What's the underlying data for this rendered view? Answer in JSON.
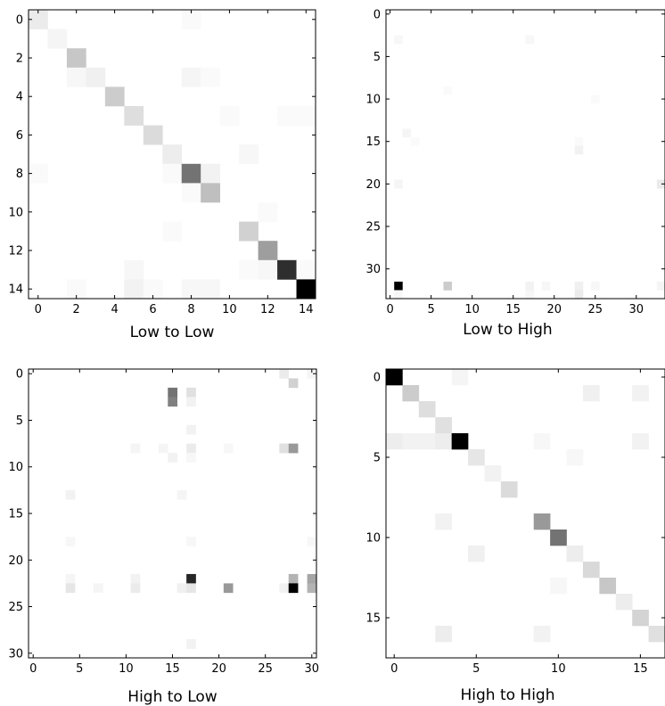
{
  "chart_data": [
    {
      "type": "heatmap",
      "title": "Low to Low",
      "n_rows": 15,
      "n_cols": 15,
      "xticks": [
        0,
        2,
        4,
        6,
        8,
        10,
        12,
        14
      ],
      "yticks": [
        0,
        2,
        4,
        6,
        8,
        10,
        12,
        14
      ],
      "colormap": "grayscale (white = low, black = high)",
      "cells": [
        {
          "r": 0,
          "c": 0,
          "v": 0.08
        },
        {
          "r": 0,
          "c": 8,
          "v": 0.02
        },
        {
          "r": 1,
          "c": 1,
          "v": 0.04
        },
        {
          "r": 2,
          "c": 2,
          "v": 0.22
        },
        {
          "r": 3,
          "c": 2,
          "v": 0.03
        },
        {
          "r": 3,
          "c": 3,
          "v": 0.06
        },
        {
          "r": 3,
          "c": 8,
          "v": 0.04
        },
        {
          "r": 3,
          "c": 9,
          "v": 0.02
        },
        {
          "r": 4,
          "c": 4,
          "v": 0.2
        },
        {
          "r": 5,
          "c": 5,
          "v": 0.13
        },
        {
          "r": 5,
          "c": 10,
          "v": 0.02
        },
        {
          "r": 5,
          "c": 13,
          "v": 0.02
        },
        {
          "r": 5,
          "c": 14,
          "v": 0.02
        },
        {
          "r": 6,
          "c": 6,
          "v": 0.14
        },
        {
          "r": 7,
          "c": 7,
          "v": 0.07
        },
        {
          "r": 7,
          "c": 11,
          "v": 0.03
        },
        {
          "r": 8,
          "c": 0,
          "v": 0.02
        },
        {
          "r": 8,
          "c": 7,
          "v": 0.02
        },
        {
          "r": 8,
          "c": 8,
          "v": 0.55
        },
        {
          "r": 8,
          "c": 9,
          "v": 0.05
        },
        {
          "r": 9,
          "c": 8,
          "v": 0.02
        },
        {
          "r": 9,
          "c": 9,
          "v": 0.25
        },
        {
          "r": 10,
          "c": 12,
          "v": 0.02
        },
        {
          "r": 11,
          "c": 7,
          "v": 0.02
        },
        {
          "r": 11,
          "c": 11,
          "v": 0.18
        },
        {
          "r": 12,
          "c": 12,
          "v": 0.38
        },
        {
          "r": 13,
          "c": 5,
          "v": 0.03
        },
        {
          "r": 13,
          "c": 11,
          "v": 0.02
        },
        {
          "r": 13,
          "c": 12,
          "v": 0.03
        },
        {
          "r": 13,
          "c": 13,
          "v": 0.82
        },
        {
          "r": 13,
          "c": 14,
          "v": 0.02
        },
        {
          "r": 14,
          "c": 2,
          "v": 0.02
        },
        {
          "r": 14,
          "c": 5,
          "v": 0.05
        },
        {
          "r": 14,
          "c": 6,
          "v": 0.02
        },
        {
          "r": 14,
          "c": 8,
          "v": 0.03
        },
        {
          "r": 14,
          "c": 9,
          "v": 0.03
        },
        {
          "r": 14,
          "c": 14,
          "v": 1.0
        }
      ]
    },
    {
      "type": "heatmap",
      "title": "Low to High",
      "n_rows": 34,
      "n_cols": 34,
      "xticks": [
        0,
        5,
        10,
        15,
        20,
        25,
        30
      ],
      "yticks": [
        0,
        5,
        10,
        15,
        20,
        25,
        30
      ],
      "colormap": "grayscale (white = low, black = high)",
      "cells": [
        {
          "r": 3,
          "c": 1,
          "v": 0.03
        },
        {
          "r": 3,
          "c": 17,
          "v": 0.03
        },
        {
          "r": 9,
          "c": 7,
          "v": 0.02
        },
        {
          "r": 10,
          "c": 25,
          "v": 0.02
        },
        {
          "r": 14,
          "c": 2,
          "v": 0.04
        },
        {
          "r": 15,
          "c": 3,
          "v": 0.02
        },
        {
          "r": 15,
          "c": 23,
          "v": 0.02
        },
        {
          "r": 16,
          "c": 23,
          "v": 0.05
        },
        {
          "r": 20,
          "c": 1,
          "v": 0.04
        },
        {
          "r": 20,
          "c": 33,
          "v": 0.08
        },
        {
          "r": 32,
          "c": 1,
          "v": 1.0
        },
        {
          "r": 32,
          "c": 7,
          "v": 0.2
        },
        {
          "r": 32,
          "c": 17,
          "v": 0.05
        },
        {
          "r": 32,
          "c": 19,
          "v": 0.03
        },
        {
          "r": 32,
          "c": 23,
          "v": 0.06
        },
        {
          "r": 32,
          "c": 25,
          "v": 0.03
        },
        {
          "r": 32,
          "c": 33,
          "v": 0.04
        },
        {
          "r": 33,
          "c": 1,
          "v": 0.03
        },
        {
          "r": 33,
          "c": 17,
          "v": 0.03
        },
        {
          "r": 33,
          "c": 23,
          "v": 0.08
        }
      ]
    },
    {
      "type": "heatmap",
      "title": "High to Low",
      "n_rows": 31,
      "n_cols": 31,
      "xticks": [
        0,
        5,
        10,
        15,
        20,
        25,
        30
      ],
      "yticks": [
        0,
        5,
        10,
        15,
        20,
        25,
        30
      ],
      "colormap": "grayscale (white = low, black = high)",
      "cells": [
        {
          "r": 0,
          "c": 27,
          "v": 0.08
        },
        {
          "r": 0,
          "c": 30,
          "v": 0.04
        },
        {
          "r": 1,
          "c": 28,
          "v": 0.18
        },
        {
          "r": 2,
          "c": 15,
          "v": 0.55
        },
        {
          "r": 2,
          "c": 17,
          "v": 0.12
        },
        {
          "r": 3,
          "c": 15,
          "v": 0.5
        },
        {
          "r": 3,
          "c": 17,
          "v": 0.05
        },
        {
          "r": 6,
          "c": 17,
          "v": 0.05
        },
        {
          "r": 8,
          "c": 11,
          "v": 0.04
        },
        {
          "r": 8,
          "c": 14,
          "v": 0.04
        },
        {
          "r": 8,
          "c": 17,
          "v": 0.08
        },
        {
          "r": 8,
          "c": 21,
          "v": 0.03
        },
        {
          "r": 8,
          "c": 27,
          "v": 0.12
        },
        {
          "r": 8,
          "c": 28,
          "v": 0.4
        },
        {
          "r": 9,
          "c": 15,
          "v": 0.05
        },
        {
          "r": 9,
          "c": 17,
          "v": 0.03
        },
        {
          "r": 13,
          "c": 4,
          "v": 0.05
        },
        {
          "r": 13,
          "c": 16,
          "v": 0.04
        },
        {
          "r": 18,
          "c": 4,
          "v": 0.03
        },
        {
          "r": 18,
          "c": 17,
          "v": 0.03
        },
        {
          "r": 18,
          "c": 30,
          "v": 0.03
        },
        {
          "r": 22,
          "c": 4,
          "v": 0.04
        },
        {
          "r": 22,
          "c": 11,
          "v": 0.05
        },
        {
          "r": 22,
          "c": 17,
          "v": 0.85
        },
        {
          "r": 22,
          "c": 28,
          "v": 0.3
        },
        {
          "r": 22,
          "c": 30,
          "v": 0.35
        },
        {
          "r": 23,
          "c": 4,
          "v": 0.1
        },
        {
          "r": 23,
          "c": 7,
          "v": 0.04
        },
        {
          "r": 23,
          "c": 11,
          "v": 0.08
        },
        {
          "r": 23,
          "c": 16,
          "v": 0.06
        },
        {
          "r": 23,
          "c": 17,
          "v": 0.1
        },
        {
          "r": 23,
          "c": 21,
          "v": 0.4
        },
        {
          "r": 23,
          "c": 27,
          "v": 0.05
        },
        {
          "r": 23,
          "c": 28,
          "v": 1.0
        },
        {
          "r": 23,
          "c": 30,
          "v": 0.3
        },
        {
          "r": 29,
          "c": 17,
          "v": 0.05
        }
      ]
    },
    {
      "type": "heatmap",
      "title": "High to High",
      "n_rows": 18,
      "n_cols": 17,
      "xticks": [
        0,
        5,
        10,
        15
      ],
      "yticks": [
        0,
        5,
        10,
        15
      ],
      "colormap": "grayscale (white = low, black = high)",
      "cells": [
        {
          "r": 0,
          "c": 0,
          "v": 1.0
        },
        {
          "r": 0,
          "c": 4,
          "v": 0.04
        },
        {
          "r": 1,
          "c": 1,
          "v": 0.2
        },
        {
          "r": 1,
          "c": 12,
          "v": 0.06
        },
        {
          "r": 1,
          "c": 15,
          "v": 0.05
        },
        {
          "r": 2,
          "c": 2,
          "v": 0.13
        },
        {
          "r": 3,
          "c": 3,
          "v": 0.12
        },
        {
          "r": 4,
          "c": 0,
          "v": 0.07
        },
        {
          "r": 4,
          "c": 1,
          "v": 0.05
        },
        {
          "r": 4,
          "c": 2,
          "v": 0.05
        },
        {
          "r": 4,
          "c": 3,
          "v": 0.07
        },
        {
          "r": 4,
          "c": 4,
          "v": 1.0
        },
        {
          "r": 4,
          "c": 9,
          "v": 0.03
        },
        {
          "r": 4,
          "c": 15,
          "v": 0.05
        },
        {
          "r": 5,
          "c": 5,
          "v": 0.1
        },
        {
          "r": 5,
          "c": 11,
          "v": 0.03
        },
        {
          "r": 6,
          "c": 6,
          "v": 0.05
        },
        {
          "r": 7,
          "c": 7,
          "v": 0.14
        },
        {
          "r": 9,
          "c": 3,
          "v": 0.05
        },
        {
          "r": 9,
          "c": 9,
          "v": 0.4
        },
        {
          "r": 10,
          "c": 10,
          "v": 0.55
        },
        {
          "r": 11,
          "c": 5,
          "v": 0.06
        },
        {
          "r": 11,
          "c": 11,
          "v": 0.07
        },
        {
          "r": 12,
          "c": 12,
          "v": 0.15
        },
        {
          "r": 13,
          "c": 10,
          "v": 0.03
        },
        {
          "r": 13,
          "c": 13,
          "v": 0.22
        },
        {
          "r": 14,
          "c": 14,
          "v": 0.07
        },
        {
          "r": 15,
          "c": 15,
          "v": 0.17
        },
        {
          "r": 16,
          "c": 3,
          "v": 0.07
        },
        {
          "r": 16,
          "c": 9,
          "v": 0.05
        },
        {
          "r": 16,
          "c": 16,
          "v": 0.12
        }
      ]
    }
  ]
}
